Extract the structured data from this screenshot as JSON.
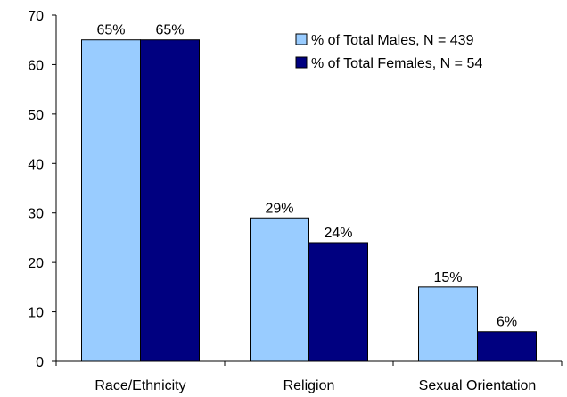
{
  "colors": {
    "males": "#99ccff",
    "females": "#000080",
    "axis": "#000000",
    "bar_stroke": "#000000"
  },
  "chart_data": {
    "type": "bar",
    "categories": [
      "Race/Ethnicity",
      "Religion",
      "Sexual Orientation"
    ],
    "series": [
      {
        "name": "% of Total Males, N = 439",
        "values": [
          65,
          29,
          15
        ],
        "labels": [
          "65%",
          "29%",
          "15%"
        ]
      },
      {
        "name": "% of Total Females, N = 54",
        "values": [
          65,
          24,
          6
        ],
        "labels": [
          "65%",
          "24%",
          "6%"
        ]
      }
    ],
    "yticks": [
      "0",
      "10",
      "20",
      "30",
      "40",
      "50",
      "60",
      "70"
    ],
    "ylim": [
      0,
      70
    ],
    "grid": false,
    "legend_position": "top-right"
  }
}
